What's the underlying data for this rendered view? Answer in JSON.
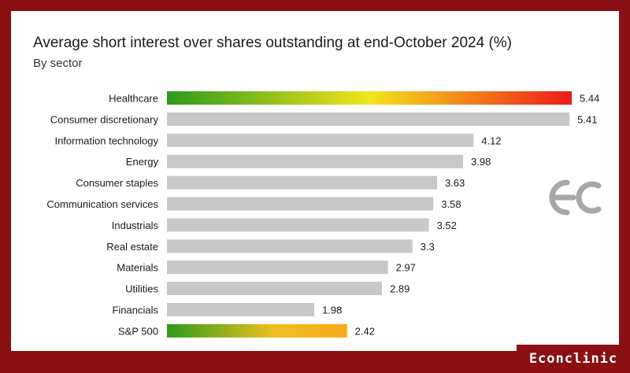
{
  "chart_data": {
    "type": "bar",
    "orientation": "horizontal",
    "title": "Average short interest over shares outstanding at end-October 2024 (%)",
    "subtitle": "By sector",
    "categories": [
      "Healthcare",
      "Consumer discretionary",
      "Information technology",
      "Energy",
      "Consumer staples",
      "Communication services",
      "Industrials",
      "Real estate",
      "Materials",
      "Utilities",
      "Financials",
      "S&P 500"
    ],
    "values": [
      5.44,
      5.41,
      4.12,
      3.98,
      3.63,
      3.58,
      3.52,
      3.3,
      2.97,
      2.89,
      1.98,
      2.42
    ],
    "value_labels": [
      "5.44",
      "5.41",
      "4.12",
      "3.98",
      "3.63",
      "3.58",
      "3.52",
      "3.3",
      "2.97",
      "2.89",
      "1.98",
      "2.42"
    ],
    "xlim": [
      0,
      5.44
    ],
    "grid": false,
    "highlighted_categories": [
      "Healthcare",
      "S&P 500"
    ],
    "colors": {
      "bar": "#c8c8ca",
      "gradient": [
        "#2e9a1b",
        "#f3e51e",
        "#ee1a1a"
      ],
      "gradient_short": [
        "#2e9a1b",
        "#f7a81b"
      ],
      "label_text": "#1a1a1a"
    }
  },
  "watermark": {
    "brand": "Econclinic",
    "logo_icon": "ec-monogram-icon"
  },
  "colors": {
    "frame": "#8b1014",
    "background": "#ffffff"
  }
}
